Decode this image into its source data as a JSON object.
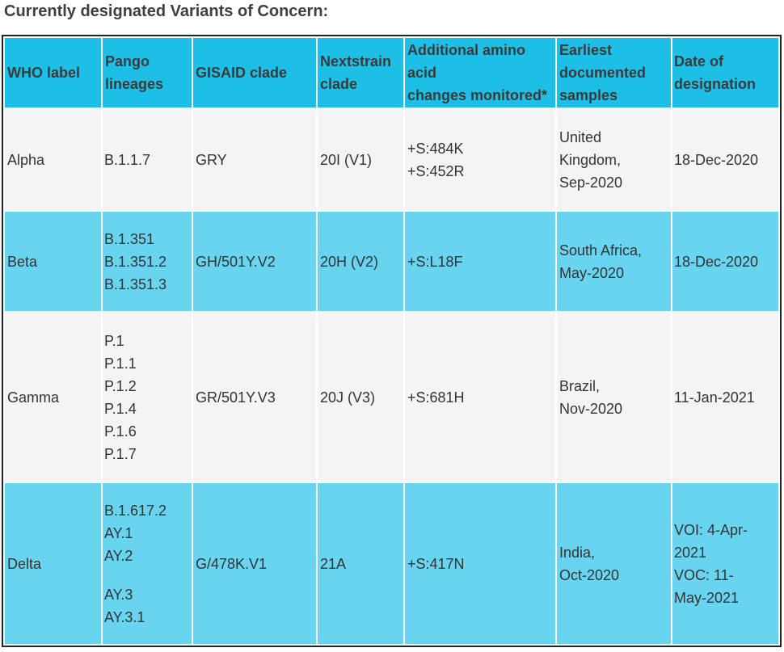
{
  "page": {
    "heading": "Currently designated Variants of Concern:"
  },
  "colors": {
    "header_bg": "#1ebfe6",
    "row_light_bg": "#f4f4f4",
    "row_blue_bg": "#68d4ef",
    "border": "#222222"
  },
  "table": {
    "headers": [
      [
        "WHO label"
      ],
      [
        "Pango",
        "lineages"
      ],
      [
        "GISAID clade"
      ],
      [
        "Nextstrain",
        "clade"
      ],
      [
        "Additional amino",
        "acid",
        "changes monitored*"
      ],
      [
        "Earliest",
        "documented",
        "samples"
      ],
      [
        "Date of",
        "designation"
      ]
    ],
    "rows": [
      {
        "who": "Alpha",
        "pango": [
          "B.1.1.7"
        ],
        "gisaid": "GRY",
        "nextstrain": "20I (V1)",
        "amino": [
          "+S:484K",
          "+S:452R"
        ],
        "samples": [
          "United",
          "Kingdom,",
          "Sep-2020"
        ],
        "date": [
          "18-Dec-2020"
        ]
      },
      {
        "who": "Beta",
        "pango": [
          "B.1.351",
          "B.1.351.2",
          "B.1.351.3"
        ],
        "gisaid": "GH/501Y.V2",
        "nextstrain": "20H (V2)",
        "amino": [
          "+S:L18F"
        ],
        "samples": [
          "South Africa,",
          "May-2020"
        ],
        "date": [
          "18-Dec-2020"
        ]
      },
      {
        "who": "Gamma",
        "pango": [
          "P.1",
          "P.1.1",
          "P.1.2",
          "P.1.4",
          "P.1.6",
          "P.1.7"
        ],
        "gisaid": "GR/501Y.V3",
        "nextstrain": "20J (V3)",
        "amino": [
          "+S:681H"
        ],
        "samples": [
          "Brazil,",
          "Nov-2020"
        ],
        "date": [
          "11-Jan-2021"
        ]
      },
      {
        "who": "Delta",
        "pango": [
          "B.1.617.2",
          "AY.1",
          "AY.2",
          "AY.3",
          "AY.3.1"
        ],
        "gisaid": "G/478K.V1",
        "nextstrain": "21A",
        "amino": [
          "+S:417N"
        ],
        "samples": [
          "India,",
          "Oct-2020"
        ],
        "date": [
          "VOI: 4-Apr-",
          "2021",
          "VOC: 11-",
          "May-2021"
        ]
      }
    ]
  }
}
